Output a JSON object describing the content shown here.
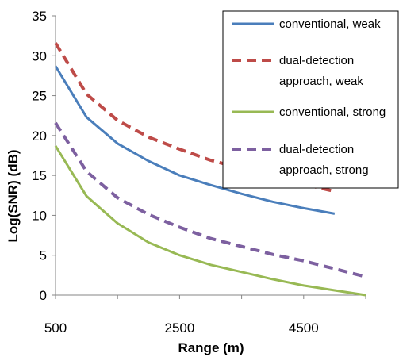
{
  "chart_data": {
    "type": "line",
    "title": "",
    "xlabel": "Range (m)",
    "ylabel": "Log(SNR) (dB)",
    "xlim": [
      500,
      5500
    ],
    "ylim": [
      0,
      35
    ],
    "x_ticks": [
      500,
      2500,
      4500
    ],
    "y_ticks": [
      0,
      5,
      10,
      15,
      20,
      25,
      30,
      35
    ],
    "grid": false,
    "legend_position": "top-right",
    "series": [
      {
        "name": "conventional, weak",
        "color": "#4a7ebb",
        "dash": "solid",
        "x": [
          500,
          1000,
          1500,
          2000,
          2500,
          3000,
          3500,
          4000,
          4500,
          5000
        ],
        "y": [
          28.7,
          22.3,
          19.0,
          16.8,
          15.0,
          13.8,
          12.7,
          11.7,
          10.9,
          10.2
        ]
      },
      {
        "name": "dual-detection approach, weak",
        "color": "#be4b48",
        "dash": "dashed",
        "x": [
          500,
          1000,
          1500,
          2000,
          2500,
          3000,
          3500,
          4000,
          4500,
          5000
        ],
        "y": [
          31.6,
          25.2,
          21.9,
          19.8,
          18.3,
          16.9,
          15.9,
          14.8,
          13.9,
          13.0
        ]
      },
      {
        "name": "conventional, strong",
        "color": "#98b954",
        "dash": "solid",
        "x": [
          500,
          1000,
          1500,
          2000,
          2500,
          3000,
          3500,
          4000,
          4500,
          5000,
          5500
        ],
        "y": [
          18.7,
          12.4,
          9.0,
          6.6,
          5.0,
          3.8,
          2.9,
          2.0,
          1.2,
          0.6,
          0.0
        ]
      },
      {
        "name": "dual-detection approach, strong",
        "color": "#7d60a0",
        "dash": "dashed",
        "x": [
          500,
          1000,
          1500,
          2000,
          2500,
          3000,
          3500,
          4000,
          4500,
          5000,
          5500
        ],
        "y": [
          21.6,
          15.5,
          12.2,
          10.1,
          8.5,
          7.1,
          6.1,
          5.1,
          4.3,
          3.3,
          2.3
        ]
      }
    ],
    "legend_entries": [
      {
        "lines": [
          "conventional, weak"
        ]
      },
      {
        "lines": [
          "dual-detection",
          "approach, weak"
        ]
      },
      {
        "lines": [
          "conventional, strong"
        ]
      },
      {
        "lines": [
          "dual-detection",
          "approach, strong"
        ]
      }
    ]
  }
}
